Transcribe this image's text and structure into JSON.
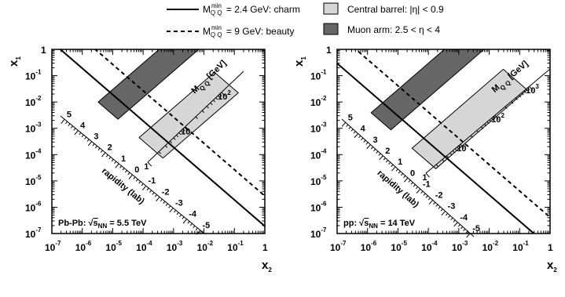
{
  "legend": {
    "charm": {
      "main": "M",
      "sup": "min",
      "sub": "Q Q",
      "rest": " = 2.4 GeV: charm"
    },
    "beauty": {
      "main": "M",
      "sup": "min",
      "sub": "Q Q",
      "rest": " = 9 GeV: beauty"
    },
    "central": {
      "label": "Central barrel: |η| < 0.9"
    },
    "muon": {
      "label": "Muon arm: 2.5 < η < 4"
    }
  },
  "colors": {
    "central_fill": "#d6d6d6",
    "muon_fill": "#666666",
    "line": "#000000"
  },
  "chart_data": [
    {
      "type": "line",
      "xlabel": "x",
      "xlabel_sub": "2",
      "ylabel": "x",
      "ylabel_sub": "1",
      "x_scale": "log",
      "y_scale": "log",
      "xlim": [
        1e-07,
        1
      ],
      "ylim": [
        1e-07,
        1
      ],
      "x_ticks": [
        {
          "base": "10",
          "exp": "-7"
        },
        {
          "base": "10",
          "exp": "-6"
        },
        {
          "base": "10",
          "exp": "-5"
        },
        {
          "base": "10",
          "exp": "-4"
        },
        {
          "base": "10",
          "exp": "-3"
        },
        {
          "base": "10",
          "exp": "-2"
        },
        {
          "base": "10",
          "exp": "-1"
        },
        {
          "base": "1",
          "exp": ""
        }
      ],
      "y_ticks": [
        {
          "base": "10",
          "exp": "-7"
        },
        {
          "base": "10",
          "exp": "-6"
        },
        {
          "base": "10",
          "exp": "-5"
        },
        {
          "base": "10",
          "exp": "-4"
        },
        {
          "base": "10",
          "exp": "-3"
        },
        {
          "base": "10",
          "exp": "-2"
        },
        {
          "base": "10",
          "exp": "-1"
        },
        {
          "base": "1",
          "exp": ""
        }
      ],
      "system_label": {
        "pre": "Pb-Pb: ",
        "sqrt": "s",
        "sub": "NN",
        "post": " = 5.5 TeV"
      },
      "sqrt_s_GeV": 5500,
      "series": [
        {
          "name": "charm",
          "style": "solid",
          "mass_GeV": 2.4
        },
        {
          "name": "beauty",
          "style": "dashed",
          "mass_GeV": 9
        }
      ],
      "central_barrel": {
        "eta_min": -0.9,
        "eta_max": 0.9,
        "mass_max_GeV": 300
      },
      "muon_arm": {
        "eta_min": 2.5,
        "eta_max": 4
      },
      "rapidity_axis": {
        "title": "rapidity (lab)",
        "labels": [
          "5",
          "4",
          "3",
          "2",
          "1",
          "0",
          "-1",
          "-2",
          "-3",
          "-4",
          "-5"
        ]
      },
      "mass_axis": {
        "title_main": "M",
        "title_sub": "Q Q",
        "title_unit": " [GeV]",
        "labels": [
          {
            "base": "1",
            "exp": ""
          },
          {
            "base": "10",
            "exp": ""
          },
          {
            "base": "10",
            "exp": "2"
          }
        ]
      }
    },
    {
      "type": "line",
      "xlabel": "x",
      "xlabel_sub": "2",
      "ylabel": "x",
      "ylabel_sub": "1",
      "x_scale": "log",
      "y_scale": "log",
      "xlim": [
        1e-07,
        1
      ],
      "ylim": [
        1e-07,
        1
      ],
      "x_ticks": [
        {
          "base": "10",
          "exp": "-7"
        },
        {
          "base": "10",
          "exp": "-6"
        },
        {
          "base": "10",
          "exp": "-5"
        },
        {
          "base": "10",
          "exp": "-4"
        },
        {
          "base": "10",
          "exp": "-3"
        },
        {
          "base": "10",
          "exp": "-2"
        },
        {
          "base": "10",
          "exp": "-1"
        },
        {
          "base": "1",
          "exp": ""
        }
      ],
      "y_ticks": [
        {
          "base": "10",
          "exp": "-7"
        },
        {
          "base": "10",
          "exp": "-6"
        },
        {
          "base": "10",
          "exp": "-5"
        },
        {
          "base": "10",
          "exp": "-4"
        },
        {
          "base": "10",
          "exp": "-3"
        },
        {
          "base": "10",
          "exp": "-2"
        },
        {
          "base": "10",
          "exp": "-1"
        },
        {
          "base": "1",
          "exp": ""
        }
      ],
      "system_label": {
        "pre": "pp: ",
        "sqrt": "s",
        "sub": "NN",
        "post": " = 14 TeV"
      },
      "sqrt_s_GeV": 14000,
      "series": [
        {
          "name": "charm",
          "style": "solid",
          "mass_GeV": 2.4
        },
        {
          "name": "beauty",
          "style": "dashed",
          "mass_GeV": 9
        }
      ],
      "central_barrel": {
        "eta_min": -0.9,
        "eta_max": 0.9,
        "mass_max_GeV": 1000
      },
      "muon_arm": {
        "eta_min": 2.5,
        "eta_max": 4
      },
      "rapidity_axis": {
        "title": "rapidity (lab)",
        "labels": [
          "5",
          "4",
          "3",
          "2",
          "1",
          "0",
          "-1",
          "-2",
          "-3",
          "-4",
          "-5"
        ]
      },
      "mass_axis": {
        "title_main": "M",
        "title_sub": "Q Q",
        "title_unit": " [GeV]",
        "labels": [
          {
            "base": "1",
            "exp": ""
          },
          {
            "base": "10",
            "exp": ""
          },
          {
            "base": "10",
            "exp": "2"
          },
          {
            "base": "10",
            "exp": "3"
          }
        ]
      }
    }
  ]
}
